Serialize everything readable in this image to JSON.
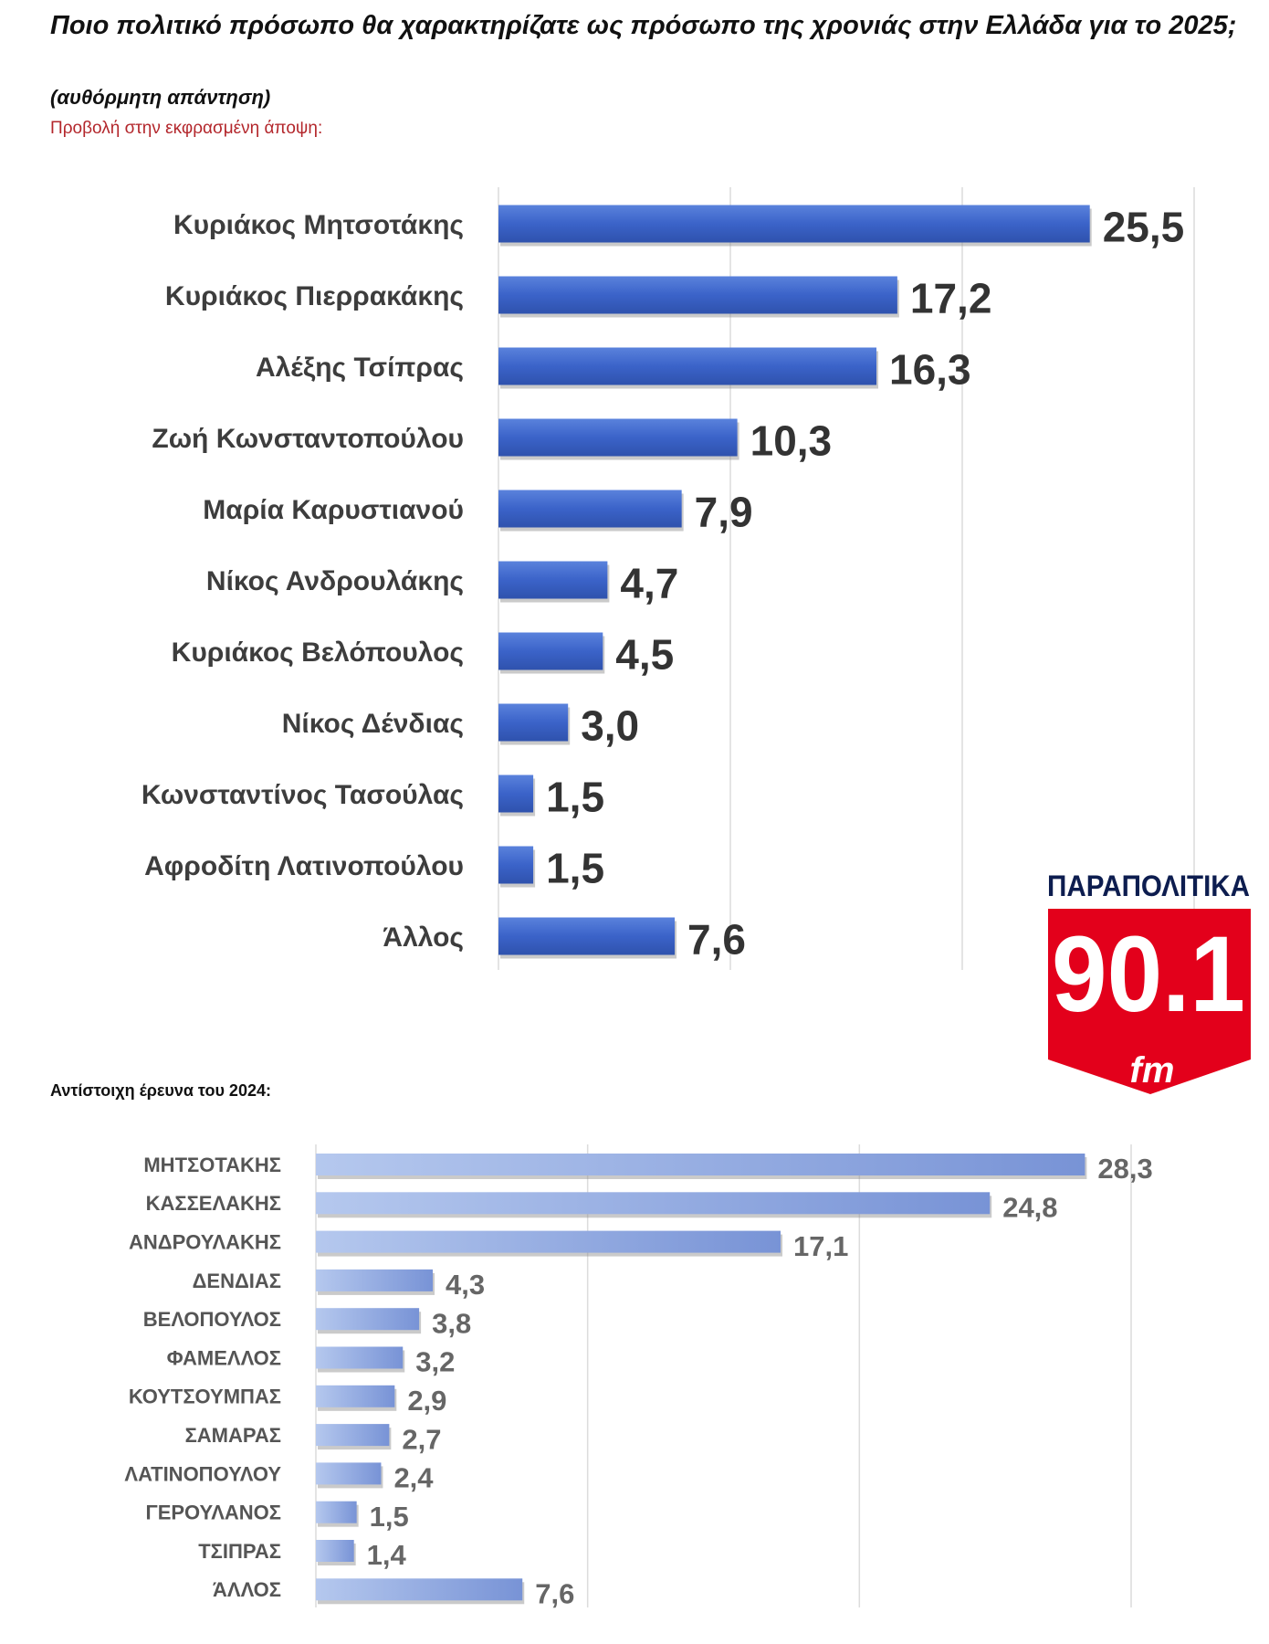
{
  "header": {
    "title": "Ποιο πολιτικό πρόσωπο θα χαρακτηρίζατε ως πρόσωπο της χρονιάς στην Ελλάδα για το 2025;",
    "subtitle": "(αυθόρμητη απάντηση)",
    "note": "Προβολή στην εκφρασμένη άποψη:"
  },
  "section2_title": "Αντίστοιχη έρευνα του 2024:",
  "logo": {
    "top_text": "ΠΑΡΑΠΟΛΙΤΙΚΑ",
    "number": "90.1",
    "unit": "fm",
    "red": "#e3001b",
    "navy": "#0d1d4f"
  },
  "chart_data": [
    {
      "type": "bar",
      "orientation": "horizontal",
      "xlim": [
        0,
        30
      ],
      "grid": true,
      "bar_color": "#3b63c9",
      "categories": [
        "Κυριάκος Μητσοτάκης",
        "Κυριάκος Πιερρακάκης",
        "Αλέξης Τσίπρας",
        "Ζωή Κωνσταντοπούλου",
        "Μαρία Καρυστιανού",
        "Νίκος Ανδρουλάκης",
        "Κυριάκος Βελόπουλος",
        "Νίκος Δένδιας",
        "Κωνσταντίνος Τασούλας",
        "Αφροδίτη Λατινοπούλου",
        "Άλλος"
      ],
      "values": [
        25.5,
        17.2,
        16.3,
        10.3,
        7.9,
        4.7,
        4.5,
        3.0,
        1.5,
        1.5,
        7.6
      ],
      "labels": [
        "25,5",
        "17,2",
        "16,3",
        "10,3",
        "7,9",
        "4,7",
        "4,5",
        "3,0",
        "1,5",
        "1,5",
        "7,6"
      ]
    },
    {
      "type": "bar",
      "orientation": "horizontal",
      "xlim": [
        0,
        30
      ],
      "grid": true,
      "bar_color": "#8aa6e0",
      "categories": [
        "ΜΗΤΣΟΤΑΚΗΣ",
        "ΚΑΣΣΕΛΑΚΗΣ",
        "ΑΝΔΡΟΥΛΑΚΗΣ",
        "ΔΕΝΔΙΑΣ",
        "ΒΕΛΟΠΟΥΛΟΣ",
        "ΦΑΜΕΛΛΟΣ",
        "ΚΟΥΤΣΟΥΜΠΑΣ",
        "ΣΑΜΑΡΑΣ",
        "ΛΑΤΙΝΟΠΟΥΛΟΥ",
        "ΓΕΡΟΥΛΑΝΟΣ",
        "ΤΣΙΠΡΑΣ",
        "ΆΛΛΟΣ"
      ],
      "values": [
        28.3,
        24.8,
        17.1,
        4.3,
        3.8,
        3.2,
        2.9,
        2.7,
        2.4,
        1.5,
        1.4,
        7.6
      ],
      "labels": [
        "28,3",
        "24,8",
        "17,1",
        "4,3",
        "3,8",
        "3,2",
        "2,9",
        "2,7",
        "2,4",
        "1,5",
        "1,4",
        "7,6"
      ]
    }
  ]
}
